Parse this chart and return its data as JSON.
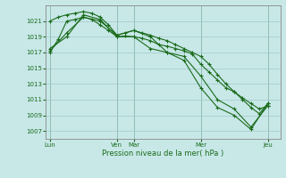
{
  "xlabel": "Pression niveau de la mer( hPa )",
  "bg_color": "#c8e8e8",
  "grid_color": "#a0c8c8",
  "line_color": "#1a6b1a",
  "ylim": [
    1006.0,
    1023.0
  ],
  "yticks": [
    1007,
    1009,
    1011,
    1013,
    1015,
    1017,
    1019,
    1021
  ],
  "xtick_labels": [
    "Lun",
    "Ven",
    "Mar",
    "Mer",
    "Jeu"
  ],
  "xtick_positions": [
    0,
    8,
    10,
    18,
    26
  ],
  "xlim": [
    -0.5,
    27.5
  ],
  "lines": [
    [
      0,
      1017.0,
      1,
      1018.7,
      2,
      1021.0,
      3,
      1021.2,
      4,
      1021.5,
      5,
      1021.2,
      6,
      1020.5,
      7,
      1019.8,
      8,
      1019.0,
      9,
      1019.1,
      10,
      1019.0,
      11,
      1018.8,
      12,
      1018.5,
      13,
      1018.0,
      14,
      1017.8,
      15,
      1017.5,
      16,
      1017.2,
      17,
      1016.8,
      18,
      1015.5,
      19,
      1014.5,
      20,
      1013.5,
      21,
      1012.5,
      22,
      1012.0,
      23,
      1011.2,
      24,
      1010.5,
      25,
      1009.8,
      26,
      1010.2
    ],
    [
      0,
      1021.0,
      1,
      1021.5,
      2,
      1021.8,
      3,
      1022.0,
      4,
      1022.2,
      5,
      1022.0,
      6,
      1021.5,
      7,
      1020.5,
      8,
      1019.2,
      9,
      1019.5,
      10,
      1019.8,
      11,
      1019.5,
      12,
      1019.2,
      13,
      1018.8,
      14,
      1018.5,
      15,
      1018.0,
      16,
      1017.5,
      17,
      1017.0,
      18,
      1016.5,
      19,
      1015.5,
      20,
      1014.2,
      21,
      1013.0,
      22,
      1012.0,
      23,
      1011.0,
      24,
      1010.0,
      25,
      1009.2,
      26,
      1010.5
    ],
    [
      0,
      1017.5,
      2,
      1019.0,
      4,
      1021.8,
      6,
      1021.2,
      8,
      1019.0,
      10,
      1019.0,
      12,
      1017.5,
      14,
      1017.0,
      16,
      1016.0,
      18,
      1012.5,
      20,
      1010.0,
      22,
      1009.0,
      24,
      1007.2,
      26,
      1010.5
    ],
    [
      0,
      1017.2,
      2,
      1019.5,
      4,
      1021.5,
      6,
      1021.0,
      8,
      1019.2,
      10,
      1019.8,
      12,
      1019.0,
      14,
      1017.0,
      16,
      1016.5,
      18,
      1014.0,
      20,
      1011.0,
      22,
      1009.8,
      24,
      1007.5,
      26,
      1010.2
    ]
  ]
}
